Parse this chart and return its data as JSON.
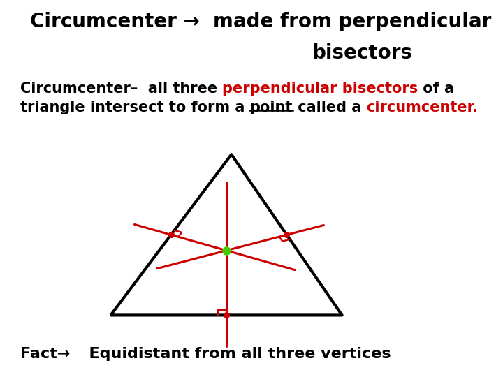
{
  "bg_header_color": "#77dd00",
  "bg_body_color": "#ffffff",
  "header_line1": "Circumcenter →  made from perpendicular",
  "header_line2": "bisectors",
  "body_line1_seg1": "Circumcenter–  all three ",
  "body_line1_seg2": "perpendicular bisectors",
  "body_line1_seg3": " of a",
  "body_line2_seg1": "triangle intersect to form a ",
  "body_line2_seg2": "point",
  "body_line2_seg3": " called a ",
  "body_line2_seg4": "circumcenter.",
  "fact_seg1": "Fact→",
  "fact_seg2": "  Equidistant from all three vertices",
  "triangle_color": "#000000",
  "bisector_color": "#cc0000",
  "dot_green_color": "#44cc00",
  "dot_red_color": "#cc0000",
  "triangle_lw": 3.0,
  "bisector_lw": 2.2,
  "header_fontsize": 20,
  "body_fontsize": 15,
  "fact_fontsize": 16,
  "tri_A": [
    0.22,
    0.2
  ],
  "tri_B": [
    0.68,
    0.2
  ],
  "tri_C": [
    0.46,
    0.72
  ]
}
